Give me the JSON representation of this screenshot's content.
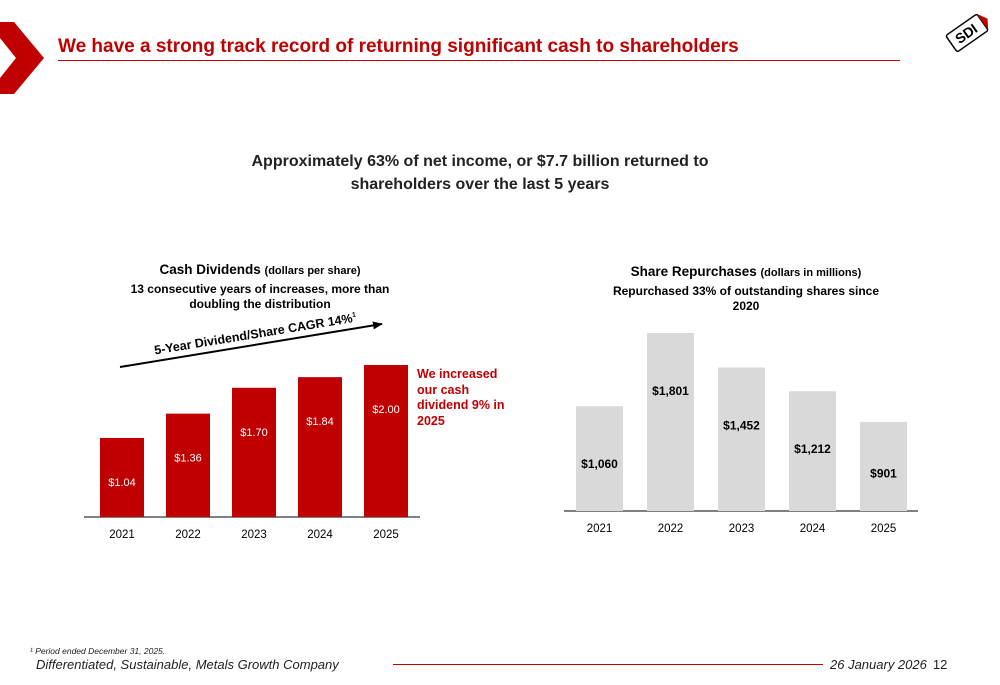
{
  "header": {
    "title": "We have a strong track record of returning significant cash to shareholders",
    "logo_text": "SDI",
    "accent_color": "#c00000"
  },
  "headline": "Approximately 63% of net income, or $7.7 billion returned to shareholders over the last 5 years",
  "dividends_panel": {
    "title": "Cash Dividends",
    "title_note": "(dollars per share)",
    "subtitle": "13 consecutive years of increases, more than doubling the distribution",
    "cagr_label": "5-Year Dividend/Share CAGR 14%",
    "cagr_footnote_mark": "1",
    "callout": "We increased our cash dividend 9% in 2025"
  },
  "repurchases_panel": {
    "title": "Share Repurchases",
    "title_note": "(dollars in millions)",
    "subtitle": "Repurchased 33% of outstanding shares since 2020"
  },
  "chart_data": [
    {
      "type": "bar",
      "categories": [
        "2021",
        "2022",
        "2023",
        "2024",
        "2025"
      ],
      "values": [
        1.04,
        1.36,
        1.7,
        1.84,
        2.0
      ],
      "labels": [
        "$1.04",
        "$1.36",
        "$1.70",
        "$1.84",
        "$2.00"
      ],
      "title": "Cash Dividends (dollars per share)",
      "ylim": [
        0,
        2.0
      ],
      "color": "#c00000",
      "label_color": "#ffffff",
      "grid": false
    },
    {
      "type": "bar",
      "categories": [
        "2021",
        "2022",
        "2023",
        "2024",
        "2025"
      ],
      "values": [
        1060,
        1801,
        1452,
        1212,
        901
      ],
      "labels": [
        "$1,060",
        "$1,801",
        "$1,452",
        "$1,212",
        "$901"
      ],
      "title": "Share Repurchases (dollars in millions)",
      "ylim": [
        0,
        1801
      ],
      "color": "#d9d9d9",
      "label_color": "#000000",
      "grid": false
    }
  ],
  "footer": {
    "footnote": "¹ Period ended December 31, 2025.",
    "tagline": "Differentiated, Sustainable, Metals Growth Company",
    "date": "26 January 2026",
    "page_number": "12"
  }
}
